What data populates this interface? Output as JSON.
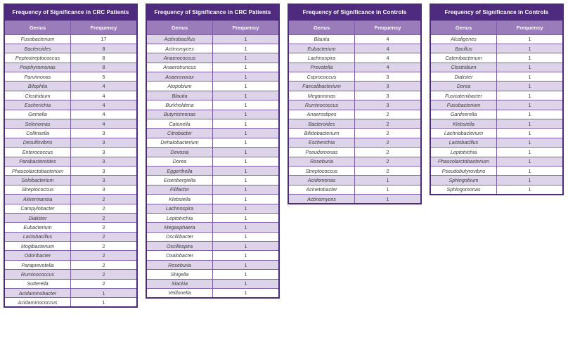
{
  "colors": {
    "title_bg": "#4e2b7f",
    "header_bg": "#9a7cba",
    "row_alt_bg": "#ded4ea",
    "row_bg": "#ffffff",
    "grid_border": "#7d5fa9",
    "cell_text": "#3d3d3d",
    "header_text": "#ffffff"
  },
  "tables": [
    {
      "title": "Frequency of Significance in CRC Patients",
      "columns": [
        "Genus",
        "Frequency"
      ],
      "first_row_shaded": false,
      "rows": [
        {
          "genus": "Fusobacterium",
          "frequency": 17
        },
        {
          "genus": "Bacteroides",
          "frequency": 8
        },
        {
          "genus": "Peptostreptococcus",
          "frequency": 8
        },
        {
          "genus": "Porphyromonas",
          "frequency": 8
        },
        {
          "genus": "Parvimonas",
          "frequency": 5
        },
        {
          "genus": "Bilophila",
          "frequency": 4
        },
        {
          "genus": "Clostridium",
          "frequency": 4
        },
        {
          "genus": "Escherichia",
          "frequency": 4
        },
        {
          "genus": "Gemella",
          "frequency": 4
        },
        {
          "genus": "Selenomas",
          "frequency": 4
        },
        {
          "genus": "Collinsella",
          "frequency": 3
        },
        {
          "genus": "Desulfovibrio",
          "frequency": 3
        },
        {
          "genus": "Enterococcus",
          "frequency": 3
        },
        {
          "genus": "Parabacteroides",
          "frequency": 3
        },
        {
          "genus": "Phascolarctobacterium",
          "frequency": 3
        },
        {
          "genus": "Solobacterium",
          "frequency": 3
        },
        {
          "genus": "Streptococcus",
          "frequency": 3
        },
        {
          "genus": "Akkermansia",
          "frequency": 2
        },
        {
          "genus": "Campylobacter",
          "frequency": 2
        },
        {
          "genus": "Dialister",
          "frequency": 2
        },
        {
          "genus": "Eubacterium",
          "frequency": 2
        },
        {
          "genus": "Lactobacillus",
          "frequency": 2
        },
        {
          "genus": "Mogibacterium",
          "frequency": 2
        },
        {
          "genus": "Odoribacter",
          "frequency": 2
        },
        {
          "genus": "Paraprevotella",
          "frequency": 2
        },
        {
          "genus": "Ruminococcus",
          "frequency": 2
        },
        {
          "genus": "Sutterella",
          "frequency": 2
        },
        {
          "genus": "Acidaminobacter",
          "frequency": 1
        },
        {
          "genus": "Acidaminococcus",
          "frequency": 1
        }
      ]
    },
    {
      "title": "Frequency of Significance in CRC Patients",
      "columns": [
        "Genus",
        "Frequency"
      ],
      "first_row_shaded": true,
      "rows": [
        {
          "genus": "Actinobacillus",
          "frequency": 1
        },
        {
          "genus": "Actinomyces",
          "frequency": 1
        },
        {
          "genus": "Anaerococcus",
          "frequency": 1
        },
        {
          "genus": "Anaerotruncus",
          "frequency": 1
        },
        {
          "genus": "Anaerovorax",
          "frequency": 1
        },
        {
          "genus": "Atopobium",
          "frequency": 1
        },
        {
          "genus": "Blautia",
          "frequency": 1
        },
        {
          "genus": "Burkholderia",
          "frequency": 1
        },
        {
          "genus": "Butyricimonas",
          "frequency": 1
        },
        {
          "genus": "Catonella",
          "frequency": 1
        },
        {
          "genus": "Citrobacter",
          "frequency": 1
        },
        {
          "genus": "Dehalobacterium",
          "frequency": 1
        },
        {
          "genus": "Devosia",
          "frequency": 1
        },
        {
          "genus": "Dorea",
          "frequency": 1
        },
        {
          "genus": "Eggerthella",
          "frequency": 1
        },
        {
          "genus": "Eisenbergiella",
          "frequency": 1
        },
        {
          "genus": "Filifactor",
          "frequency": 1
        },
        {
          "genus": "Klebsiella",
          "frequency": 1
        },
        {
          "genus": "Lachnospira",
          "frequency": 1
        },
        {
          "genus": "Leptotrichia",
          "frequency": 1
        },
        {
          "genus": "Megasphaera",
          "frequency": 1
        },
        {
          "genus": "Oscillibacter",
          "frequency": 1
        },
        {
          "genus": "Oscillospira",
          "frequency": 1
        },
        {
          "genus": "Oxalobacter",
          "frequency": 1
        },
        {
          "genus": "Roseburia",
          "frequency": 1
        },
        {
          "genus": "Shigella",
          "frequency": 1
        },
        {
          "genus": "Slackia",
          "frequency": 1
        },
        {
          "genus": "Veillonella",
          "frequency": 1
        }
      ]
    },
    {
      "title": "Frequency of Significance in Controls",
      "columns": [
        "Genus",
        "Frequency"
      ],
      "first_row_shaded": false,
      "rows": [
        {
          "genus": "Blautia",
          "frequency": 4
        },
        {
          "genus": "Eubacterium",
          "frequency": 4
        },
        {
          "genus": "Lachnospira",
          "frequency": 4
        },
        {
          "genus": "Prevotella",
          "frequency": 4
        },
        {
          "genus": "Coprococcus",
          "frequency": 3
        },
        {
          "genus": "Faecalibacterium",
          "frequency": 3
        },
        {
          "genus": "Megamonas",
          "frequency": 3
        },
        {
          "genus": "Ruminococcus",
          "frequency": 3
        },
        {
          "genus": "Anaerostipes",
          "frequency": 2
        },
        {
          "genus": "Bacteroides",
          "frequency": 2
        },
        {
          "genus": "Bifidobacterium",
          "frequency": 2
        },
        {
          "genus": "Escherichia",
          "frequency": 2
        },
        {
          "genus": "Pseudomonas",
          "frequency": 2
        },
        {
          "genus": "Roseburia",
          "frequency": 2
        },
        {
          "genus": "Streptococcus",
          "frequency": 2
        },
        {
          "genus": "Acidomonas",
          "frequency": 1
        },
        {
          "genus": "Acinetobacter",
          "frequency": 1
        },
        {
          "genus": "Actinomyces",
          "frequency": 1
        }
      ]
    },
    {
      "title": "Frequency of Significance in Controls",
      "columns": [
        "Genus",
        "Frequency"
      ],
      "first_row_shaded": false,
      "rows": [
        {
          "genus": "Alcaligenes",
          "frequency": 1
        },
        {
          "genus": "Bacillus",
          "frequency": 1
        },
        {
          "genus": "Catenibacterium",
          "frequency": 1
        },
        {
          "genus": "Clostridium",
          "frequency": 1
        },
        {
          "genus": "Dialister",
          "frequency": 1
        },
        {
          "genus": "Dorea",
          "frequency": 1
        },
        {
          "genus": "Fusicatenibacter",
          "frequency": 1
        },
        {
          "genus": "Fusobacterium",
          "frequency": 1
        },
        {
          "genus": "Gardnerella",
          "frequency": 1
        },
        {
          "genus": "Klebsiella",
          "frequency": 1
        },
        {
          "genus": "Lachnobacterium",
          "frequency": 1
        },
        {
          "genus": "Lactobacillus",
          "frequency": 1
        },
        {
          "genus": "Leptotrichia",
          "frequency": 1
        },
        {
          "genus": "Phascolarctobacterium",
          "frequency": 1
        },
        {
          "genus": "Pseudobutyrovibrio",
          "frequency": 1
        },
        {
          "genus": "Sphingobium",
          "frequency": 1
        },
        {
          "genus": "Sphingomonas",
          "frequency": 1
        }
      ]
    }
  ]
}
